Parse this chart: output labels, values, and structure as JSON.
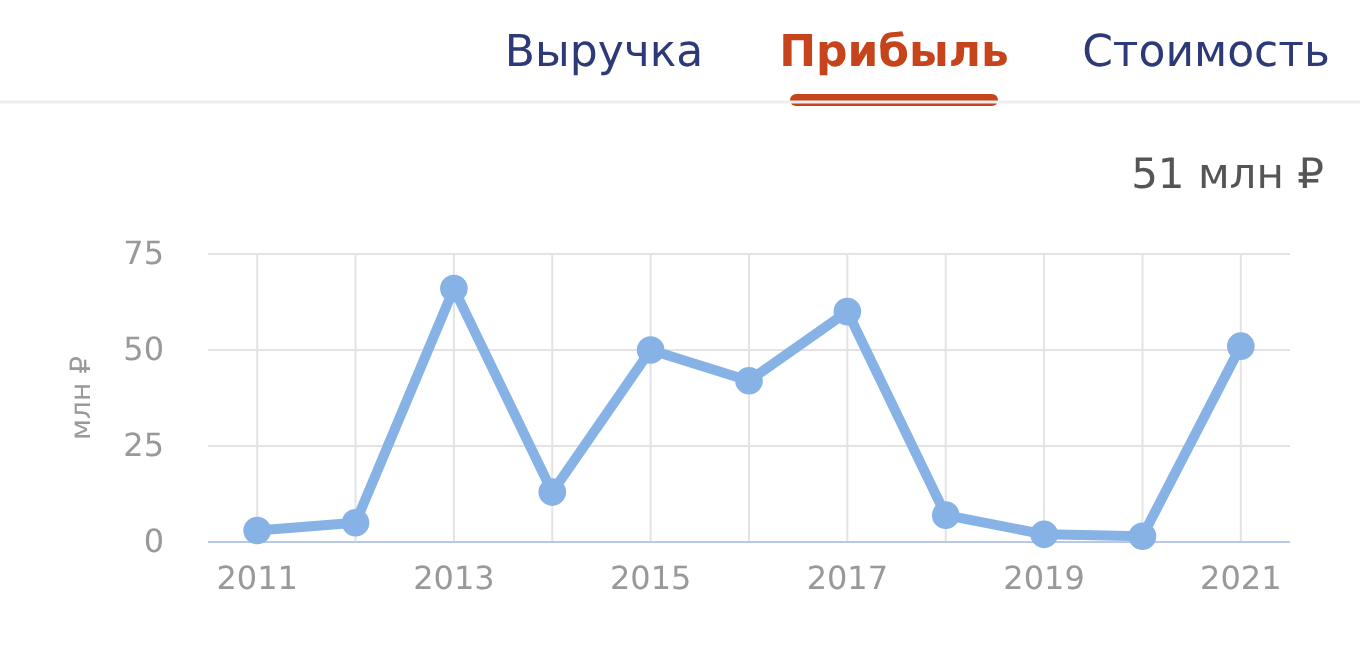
{
  "chart_data": {
    "type": "line",
    "title": "Прибыль",
    "ylabel": "млн ₽",
    "annotations": [
      "Выручка",
      "Стоимость",
      "51 млн ₽"
    ],
    "x": [
      2011,
      2012,
      2013,
      2014,
      2015,
      2016,
      2017,
      2018,
      2019,
      2020,
      2021
    ],
    "series": [
      {
        "color": "#86b2e6",
        "values": [
          3,
          5,
          66,
          13,
          50,
          42,
          60,
          7,
          2,
          1.5,
          51
        ]
      }
    ],
    "xlim": [
      2010.5,
      2021.5
    ],
    "ylim": [
      0,
      75
    ],
    "xticks": [
      2011,
      {
        "value": 2012,
        "label": null
      },
      2013,
      {
        "value": 2014,
        "label": null
      },
      2015,
      {
        "value": 2016,
        "label": null
      },
      2017,
      {
        "value": 2018,
        "label": null
      },
      2019,
      {
        "value": 2020,
        "label": null
      },
      2021
    ],
    "yticks": [
      0,
      25,
      50,
      75
    ],
    "grid": true,
    "marker": "circle",
    "line_style": "solid"
  }
}
